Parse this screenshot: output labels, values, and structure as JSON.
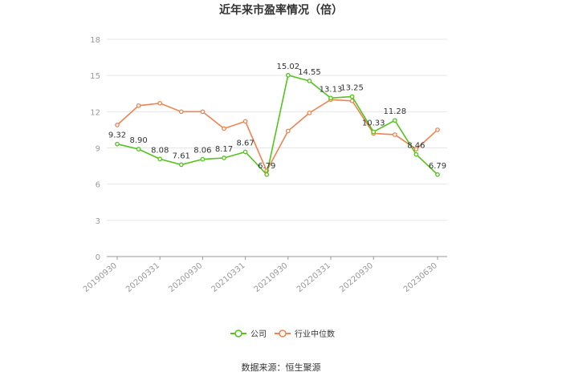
{
  "chart_data": {
    "type": "line",
    "title": "近年来市盈率情况（倍）",
    "source": "数据来源：恒生聚源",
    "ylim": [
      0,
      18
    ],
    "yticks": [
      "0",
      "3",
      "6",
      "9",
      "12",
      "15",
      "18"
    ],
    "x_tick_labels": [
      "20190930",
      "20200331",
      "20200930",
      "20210331",
      "20210930",
      "20220331",
      "20220930",
      "20230630"
    ],
    "x": [
      "20190930",
      "20191231",
      "20200331",
      "20200630",
      "20200930",
      "20201231",
      "20210331",
      "20210630",
      "20210930",
      "20211231",
      "20220331",
      "20220630",
      "20220930",
      "20221231",
      "20230331",
      "20230630"
    ],
    "series": [
      {
        "name": "公司",
        "color": "#52c41a",
        "values": [
          9.32,
          8.9,
          8.08,
          7.61,
          8.06,
          8.17,
          8.67,
          6.79,
          15.02,
          14.55,
          13.13,
          13.25,
          10.33,
          11.28,
          8.46,
          6.79
        ],
        "labels": [
          "9.32",
          "8.90",
          "8.08",
          "7.61",
          "8.06",
          "8.17",
          "8.67",
          "6.79",
          "15.02",
          "14.55",
          "13.13",
          "13.25",
          "10.33",
          "11.28",
          "8.46",
          "6.79"
        ]
      },
      {
        "name": "行业中位数",
        "color": "#f0834f",
        "values": [
          10.9,
          12.5,
          12.7,
          12.0,
          12.0,
          10.6,
          11.2,
          7.1,
          10.4,
          11.9,
          13.0,
          12.9,
          10.2,
          10.1,
          8.9,
          10.5
        ]
      }
    ],
    "legend_position": "bottom-center",
    "grid": true
  }
}
